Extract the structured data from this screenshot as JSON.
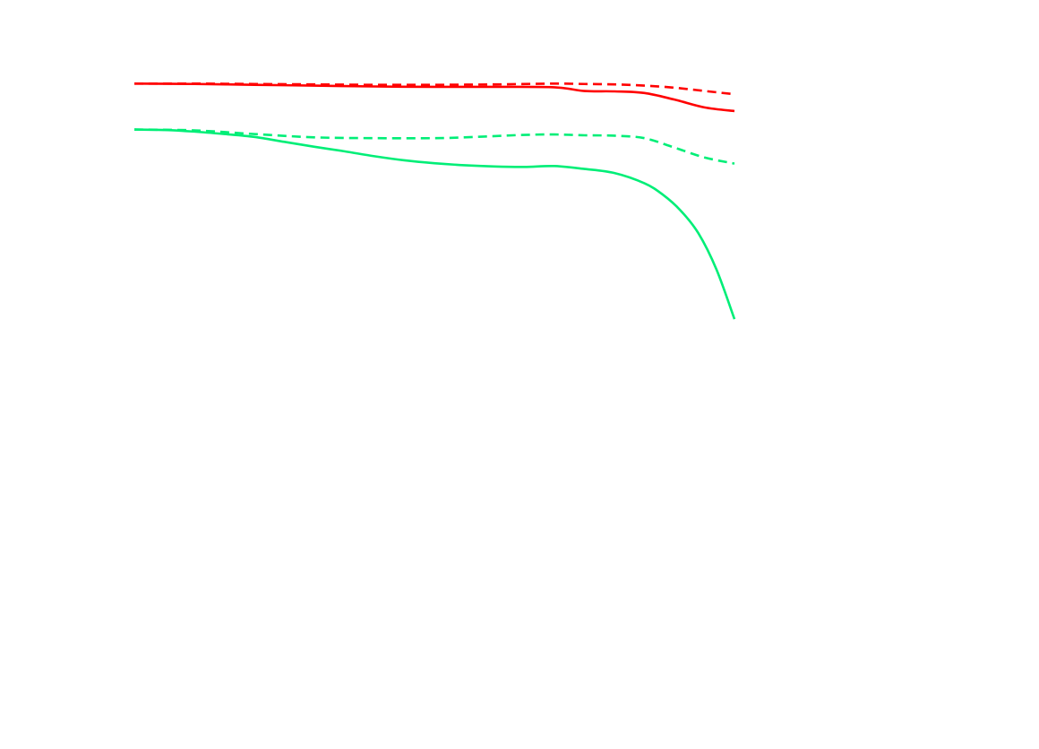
{
  "chart_data": {
    "type": "line",
    "title": "",
    "xlabel": "",
    "ylabel": "",
    "grid": false,
    "legend": "none",
    "xlim": [
      0,
      100
    ],
    "ylim": [
      0,
      100
    ],
    "series": [
      {
        "color": "#ff0000",
        "style": "solid",
        "x": [
          0,
          10,
          20,
          30,
          40,
          50,
          60,
          70,
          75,
          80,
          85,
          90,
          95,
          100
        ],
        "y": [
          88.8,
          88.7,
          88.5,
          88.3,
          88.1,
          88.0,
          88.0,
          87.9,
          87.0,
          86.9,
          86.5,
          84.9,
          83.0,
          82.1
        ]
      },
      {
        "color": "#ff0000",
        "style": "dashed",
        "x": [
          0,
          10,
          20,
          30,
          40,
          50,
          60,
          70,
          75,
          80,
          85,
          90,
          95,
          100
        ],
        "y": [
          88.8,
          88.8,
          88.7,
          88.6,
          88.5,
          88.5,
          88.6,
          88.8,
          88.7,
          88.6,
          88.3,
          87.8,
          87.0,
          86.2
        ]
      },
      {
        "color": "#00ee77",
        "style": "solid",
        "x": [
          0,
          5,
          10,
          15,
          20,
          25,
          30,
          35,
          40,
          45,
          50,
          55,
          60,
          65,
          70,
          75,
          80,
          85,
          88,
          91,
          94,
          97,
          100
        ],
        "y": [
          77.6,
          77.5,
          77.1,
          76.5,
          75.8,
          74.6,
          73.4,
          72.3,
          71.1,
          70.1,
          69.4,
          68.9,
          68.6,
          68.5,
          68.7,
          68.0,
          67.0,
          64.5,
          61.8,
          57.9,
          52.3,
          43.5,
          31.4
        ]
      },
      {
        "color": "#00ee77",
        "style": "dashed",
        "x": [
          0,
          10,
          20,
          30,
          40,
          50,
          55,
          60,
          65,
          70,
          75,
          80,
          85,
          90,
          95,
          100
        ],
        "y": [
          77.6,
          77.4,
          76.5,
          75.7,
          75.5,
          75.5,
          75.7,
          76.0,
          76.3,
          76.4,
          76.2,
          76.1,
          75.5,
          73.2,
          70.8,
          69.3
        ]
      }
    ]
  }
}
